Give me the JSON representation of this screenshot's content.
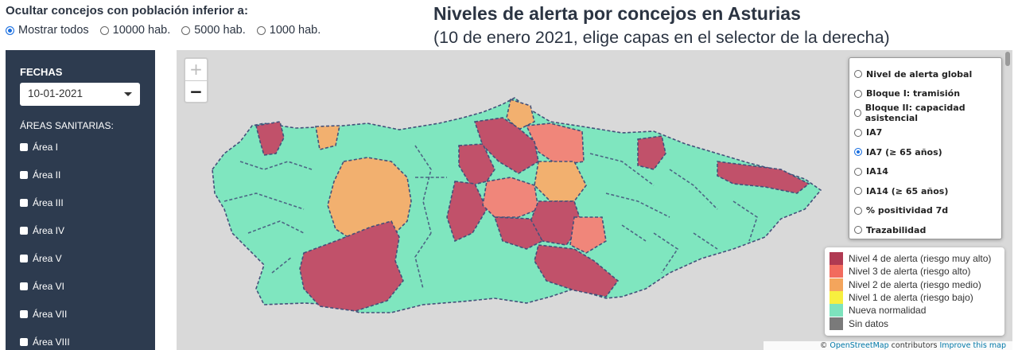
{
  "filter": {
    "title": "Ocultar concejos con población inferior a:",
    "options": [
      {
        "label": "Mostrar todos",
        "selected": true
      },
      {
        "label": "10000 hab.",
        "selected": false
      },
      {
        "label": "5000 hab.",
        "selected": false
      },
      {
        "label": "1000 hab.",
        "selected": false
      }
    ]
  },
  "header": {
    "title": "Niveles de alerta por concejos en Asturias",
    "subtitle": "(10 de enero 2021, elige capas en el selector de la derecha)"
  },
  "sidebar": {
    "dates_label": "FECHAS",
    "date_value": "10-01-2021",
    "areas_label": "ÁREAS SANITARIAS:",
    "areas": [
      "Área I",
      "Área II",
      "Área III",
      "Área IV",
      "Área V",
      "Área VI",
      "Área VII",
      "Área VIII"
    ]
  },
  "map": {
    "zoom_in": "+",
    "zoom_out": "−",
    "layers": [
      {
        "label": "Nivel de alerta global",
        "selected": false
      },
      {
        "label": "Bloque I: tramisión",
        "selected": false
      },
      {
        "label": "Bloque II: capacidad asistencial",
        "selected": false
      },
      {
        "label": "IA7",
        "selected": false
      },
      {
        "label": "IA7 (≥ 65 años)",
        "selected": true
      },
      {
        "label": "IA14",
        "selected": false
      },
      {
        "label": "IA14 (≥ 65 años)",
        "selected": false
      },
      {
        "label": "% positividad 7d",
        "selected": false
      },
      {
        "label": "Trazabilidad",
        "selected": false
      }
    ],
    "legend": [
      {
        "label": "Nivel 4 de alerta (riesgo muy alto)",
        "color": "#b03a52"
      },
      {
        "label": "Nivel 3 de alerta (riesgo alto)",
        "color": "#f26b5e"
      },
      {
        "label": "Nivel 2 de alerta (riesgo medio)",
        "color": "#f4a55c"
      },
      {
        "label": "Nivel 1 de alerta (riesgo bajo)",
        "color": "#f7ef3f"
      },
      {
        "label": "Nueva normalidad",
        "color": "#7de3bd"
      },
      {
        "label": "Sin datos",
        "color": "#7a7a7a"
      }
    ],
    "attribution": {
      "prefix": "© ",
      "osm_link": "OpenStreetMap",
      "middle": " contributors ",
      "improve_link": "Improve this map"
    }
  },
  "colors": {
    "level4": "#c1516a",
    "level3": "#f0867a",
    "level2": "#f2b06f",
    "normal": "#7fe6bf",
    "border": "#44507a"
  }
}
